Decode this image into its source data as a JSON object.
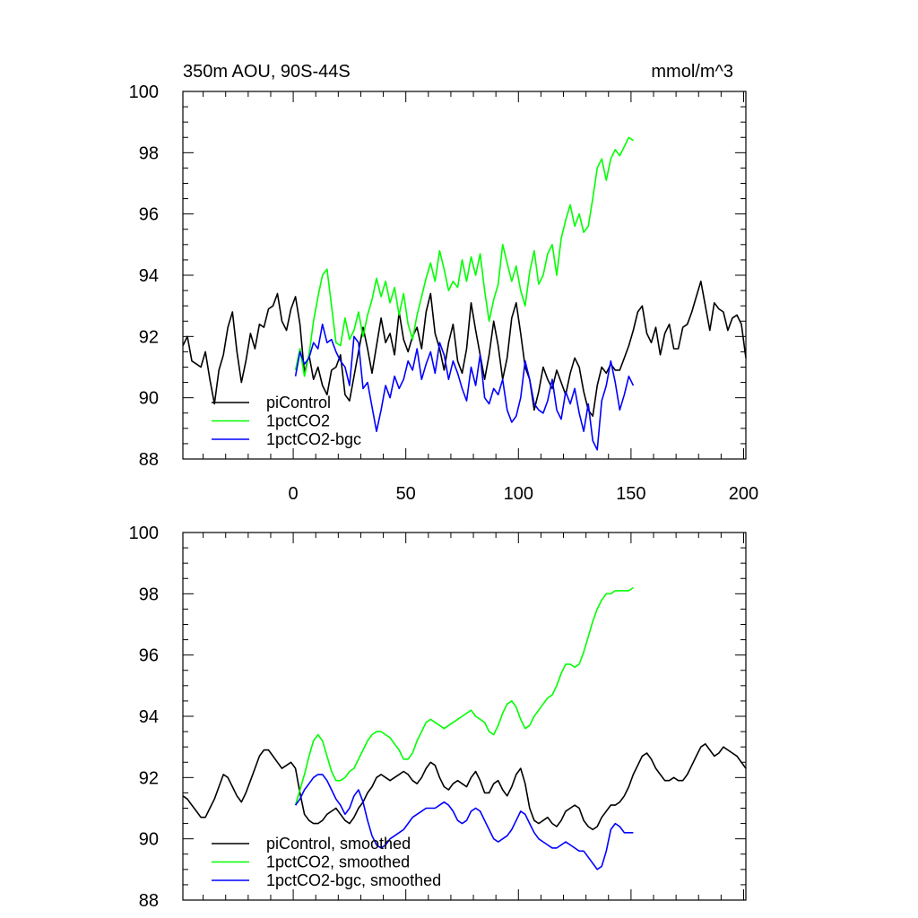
{
  "header": {
    "title": "350m AOU, 90S-44S",
    "units": "mmol/m^3"
  },
  "colors": {
    "piControl": "#000000",
    "1pctCO2": "#00ff00",
    "1pctCO2-bgc": "#0000ff"
  },
  "chart_data": [
    {
      "type": "line",
      "title": "350m AOU, 90S-44S",
      "units": "mmol/m^3",
      "xlim": [
        -49,
        201
      ],
      "ylim": [
        88,
        100
      ],
      "x_ticks": [
        0,
        50,
        100,
        150,
        200
      ],
      "x_tick_labels": [
        "0",
        "50",
        "100",
        "150",
        "200"
      ],
      "y_ticks": [
        88,
        90,
        92,
        94,
        96,
        98,
        100
      ],
      "y_tick_labels": [
        "88",
        "90",
        "92",
        "94",
        "96",
        "98",
        "100"
      ],
      "legend_position": "bottom-left",
      "series": [
        {
          "name": "piControl",
          "color": "#000000",
          "x": [
            -49,
            -47,
            -45,
            -43,
            -41,
            -39,
            -37,
            -35,
            -33,
            -31,
            -29,
            -27,
            -25,
            -23,
            -21,
            -19,
            -17,
            -15,
            -13,
            -11,
            -9,
            -7,
            -5,
            -3,
            -1,
            1,
            3,
            5,
            7,
            9,
            11,
            13,
            15,
            17,
            19,
            21,
            23,
            25,
            27,
            29,
            31,
            33,
            35,
            37,
            39,
            41,
            43,
            45,
            47,
            49,
            51,
            53,
            55,
            57,
            59,
            61,
            63,
            65,
            67,
            69,
            71,
            73,
            75,
            77,
            79,
            81,
            83,
            85,
            87,
            89,
            91,
            93,
            95,
            97,
            99,
            101,
            103,
            105,
            107,
            109,
            111,
            113,
            115,
            117,
            119,
            121,
            123,
            125,
            127,
            129,
            131,
            133,
            135,
            137,
            139,
            141,
            143,
            145,
            147,
            149,
            151,
            153,
            155,
            157,
            159,
            161,
            163,
            165,
            167,
            169,
            171,
            173,
            175,
            177,
            179,
            181,
            183,
            185,
            187,
            189,
            191,
            193,
            195,
            197,
            199,
            201
          ],
          "values": [
            91.7,
            92.0,
            91.2,
            91.1,
            91.0,
            91.5,
            90.6,
            89.8,
            90.9,
            91.4,
            92.3,
            92.8,
            91.5,
            90.5,
            91.2,
            92.1,
            91.6,
            92.4,
            92.3,
            92.9,
            93.0,
            93.4,
            92.5,
            92.2,
            92.9,
            93.3,
            92.4,
            90.8,
            91.4,
            90.6,
            91.0,
            90.4,
            90.1,
            90.9,
            91.0,
            91.4,
            90.1,
            89.9,
            90.7,
            91.5,
            92.3,
            91.6,
            90.8,
            91.7,
            92.6,
            91.8,
            92.1,
            91.4,
            92.8,
            91.9,
            91.5,
            92.0,
            92.3,
            91.6,
            92.8,
            93.4,
            92.1,
            91.6,
            90.9,
            91.8,
            92.4,
            91.2,
            90.8,
            91.6,
            93.1,
            92.2,
            91.4,
            90.6,
            91.4,
            92.5,
            91.7,
            90.6,
            91.3,
            92.6,
            93.1,
            92.1,
            91.0,
            90.6,
            89.6,
            90.2,
            91.0,
            90.6,
            90.3,
            90.9,
            90.5,
            90.1,
            90.8,
            91.3,
            91.0,
            90.2,
            89.6,
            89.4,
            90.4,
            91.0,
            90.8,
            91.1,
            90.9,
            90.9,
            91.3,
            91.7,
            92.2,
            92.8,
            93.0,
            92.1,
            91.8,
            92.3,
            91.4,
            92.1,
            92.4,
            91.6,
            91.6,
            92.3,
            92.4,
            92.8,
            93.3,
            93.8,
            93.0,
            92.2,
            93.1,
            92.9,
            92.8,
            92.2,
            92.6,
            92.7,
            92.4,
            91.3
          ],
          "smoothed_values": [
            91.4,
            91.3,
            91.1,
            90.9,
            90.7,
            90.7,
            91.0,
            91.3,
            91.7,
            92.1,
            92.0,
            91.7,
            91.4,
            91.2,
            91.5,
            91.9,
            92.3,
            92.7,
            92.9,
            92.9,
            92.7,
            92.5,
            92.3,
            92.4,
            92.5,
            92.3,
            91.5,
            90.8,
            90.6,
            90.5,
            90.5,
            90.6,
            90.8,
            90.9,
            91.0,
            90.8,
            90.6,
            90.5,
            90.7,
            91.0,
            91.2,
            91.5,
            91.7,
            92.0,
            92.1,
            92.0,
            91.9,
            92.0,
            92.1,
            92.2,
            92.1,
            91.9,
            91.8,
            92.0,
            92.3,
            92.5,
            92.4,
            92.0,
            91.7,
            91.6,
            91.8,
            91.9,
            91.8,
            91.7,
            92.0,
            92.2,
            91.9,
            91.5,
            91.5,
            91.8,
            91.9,
            91.6,
            91.4,
            91.7,
            92.1,
            92.3,
            91.8,
            91.0,
            90.6,
            90.5,
            90.6,
            90.7,
            90.5,
            90.4,
            90.6,
            90.9,
            91.0,
            91.1,
            91.0,
            90.6,
            90.4,
            90.3,
            90.4,
            90.7,
            90.9,
            91.1,
            91.1,
            91.2,
            91.4,
            91.7,
            92.1,
            92.4,
            92.7,
            92.8,
            92.6,
            92.3,
            92.1,
            91.9,
            91.9,
            92.0,
            91.9,
            91.9,
            92.1,
            92.4,
            92.7,
            93.0,
            93.1,
            92.9,
            92.7,
            92.8,
            93.0,
            92.9,
            92.8,
            92.7,
            92.5,
            92.3
          ]
        },
        {
          "name": "1pctCO2",
          "color": "#00ff00",
          "x": [
            1,
            3,
            5,
            7,
            9,
            11,
            13,
            15,
            17,
            19,
            21,
            23,
            25,
            27,
            29,
            31,
            33,
            35,
            37,
            39,
            41,
            43,
            45,
            47,
            49,
            51,
            53,
            55,
            57,
            59,
            61,
            63,
            65,
            67,
            69,
            71,
            73,
            75,
            77,
            79,
            81,
            83,
            85,
            87,
            89,
            91,
            93,
            95,
            97,
            99,
            101,
            103,
            105,
            107,
            109,
            111,
            113,
            115,
            117,
            119,
            121,
            123,
            125,
            127,
            129,
            131,
            133,
            135,
            137,
            139,
            141,
            143,
            145,
            147,
            149,
            151
          ],
          "values": [
            90.9,
            91.6,
            90.7,
            91.4,
            92.5,
            93.3,
            94.0,
            94.2,
            93.0,
            91.8,
            91.7,
            92.6,
            91.9,
            92.2,
            92.8,
            92.0,
            92.7,
            93.2,
            93.9,
            93.3,
            93.8,
            93.1,
            93.6,
            92.7,
            93.4,
            92.4,
            91.9,
            92.7,
            93.3,
            93.9,
            94.4,
            93.8,
            94.8,
            94.2,
            93.5,
            93.8,
            93.6,
            94.5,
            93.8,
            94.6,
            94.0,
            94.7,
            93.5,
            92.5,
            93.2,
            93.7,
            95.0,
            94.4,
            93.8,
            94.3,
            93.5,
            93.0,
            94.1,
            94.8,
            93.7,
            94.0,
            94.7,
            95.0,
            94.0,
            95.2,
            95.8,
            96.3,
            95.6,
            96.0,
            95.4,
            95.6,
            96.5,
            97.5,
            97.8,
            97.1,
            97.8,
            98.1,
            97.9,
            98.2,
            98.5,
            98.4
          ],
          "smoothed_values": [
            91.1,
            91.6,
            92.1,
            92.7,
            93.2,
            93.4,
            93.2,
            92.7,
            92.2,
            91.9,
            91.9,
            92.0,
            92.2,
            92.3,
            92.6,
            92.9,
            93.2,
            93.4,
            93.5,
            93.5,
            93.4,
            93.3,
            93.1,
            92.9,
            92.6,
            92.6,
            92.8,
            93.2,
            93.5,
            93.8,
            93.9,
            93.8,
            93.7,
            93.6,
            93.7,
            93.8,
            93.9,
            94.0,
            94.1,
            94.2,
            94.0,
            93.9,
            93.8,
            93.5,
            93.4,
            93.7,
            94.1,
            94.4,
            94.5,
            94.3,
            93.9,
            93.6,
            93.7,
            94.0,
            94.2,
            94.4,
            94.6,
            94.7,
            95.0,
            95.4,
            95.7,
            95.7,
            95.6,
            95.7,
            96.1,
            96.6,
            97.1,
            97.5,
            97.8,
            98.0,
            98.0,
            98.1,
            98.1,
            98.1,
            98.1,
            98.2
          ]
        },
        {
          "name": "1pctCO2-bgc",
          "color": "#0000ff",
          "x": [
            1,
            3,
            5,
            7,
            9,
            11,
            13,
            15,
            17,
            19,
            21,
            23,
            25,
            27,
            29,
            31,
            33,
            35,
            37,
            39,
            41,
            43,
            45,
            47,
            49,
            51,
            53,
            55,
            57,
            59,
            61,
            63,
            65,
            67,
            69,
            71,
            73,
            75,
            77,
            79,
            81,
            83,
            85,
            87,
            89,
            91,
            93,
            95,
            97,
            99,
            101,
            103,
            105,
            107,
            109,
            111,
            113,
            115,
            117,
            119,
            121,
            123,
            125,
            127,
            129,
            131,
            133,
            135,
            137,
            139,
            141,
            143,
            145,
            147,
            149,
            151
          ],
          "values": [
            90.7,
            91.5,
            91.1,
            91.3,
            91.8,
            91.6,
            92.4,
            91.8,
            91.9,
            91.5,
            91.2,
            91.0,
            90.4,
            92.0,
            91.8,
            90.3,
            90.5,
            89.7,
            88.9,
            89.6,
            90.4,
            90.0,
            90.7,
            90.3,
            90.6,
            91.2,
            90.9,
            91.6,
            90.6,
            91.1,
            91.5,
            90.8,
            91.8,
            91.4,
            90.6,
            91.2,
            90.8,
            90.3,
            89.9,
            91.0,
            90.4,
            91.4,
            90.0,
            89.8,
            90.3,
            90.1,
            90.6,
            89.6,
            89.2,
            89.4,
            90.0,
            91.2,
            90.6,
            89.8,
            89.6,
            89.5,
            89.9,
            90.6,
            89.6,
            89.3,
            90.2,
            89.8,
            90.3,
            89.5,
            88.9,
            89.8,
            88.6,
            88.3,
            89.9,
            90.4,
            91.2,
            90.5,
            89.6,
            90.1,
            90.7,
            90.4
          ],
          "smoothed_values": [
            91.1,
            91.3,
            91.6,
            91.8,
            92.0,
            92.1,
            92.1,
            91.9,
            91.6,
            91.3,
            91.1,
            90.8,
            91.0,
            91.4,
            91.6,
            91.2,
            90.6,
            90.1,
            89.8,
            89.7,
            89.8,
            90.0,
            90.1,
            90.2,
            90.3,
            90.5,
            90.7,
            90.8,
            90.9,
            91.0,
            91.0,
            91.0,
            91.1,
            91.2,
            91.1,
            90.9,
            90.6,
            90.5,
            90.6,
            90.9,
            91.0,
            90.9,
            90.6,
            90.3,
            90.0,
            89.9,
            90.0,
            90.1,
            90.3,
            90.6,
            90.9,
            90.8,
            90.5,
            90.2,
            90.0,
            89.9,
            89.8,
            89.7,
            89.7,
            89.8,
            89.9,
            89.8,
            89.7,
            89.6,
            89.6,
            89.4,
            89.2,
            89.0,
            89.1,
            89.6,
            90.3,
            90.5,
            90.4,
            90.2,
            90.2,
            90.2
          ]
        }
      ]
    },
    {
      "type": "line",
      "xlim": [
        -49,
        201
      ],
      "ylim": [
        88,
        100
      ],
      "x_ticks": [
        0,
        50,
        100,
        150,
        200
      ],
      "y_ticks": [
        88,
        90,
        92,
        94,
        96,
        98,
        100
      ],
      "y_tick_labels": [
        "88",
        "90",
        "92",
        "94",
        "96",
        "98",
        "100"
      ],
      "legend_position": "bottom-left",
      "series": [
        {
          "name": "piControl, smoothed",
          "color": "#000000",
          "source": 0
        },
        {
          "name": "1pctCO2, smoothed",
          "color": "#00ff00",
          "source": 1
        },
        {
          "name": "1pctCO2-bgc, smoothed",
          "color": "#0000ff",
          "source": 2
        }
      ]
    }
  ]
}
